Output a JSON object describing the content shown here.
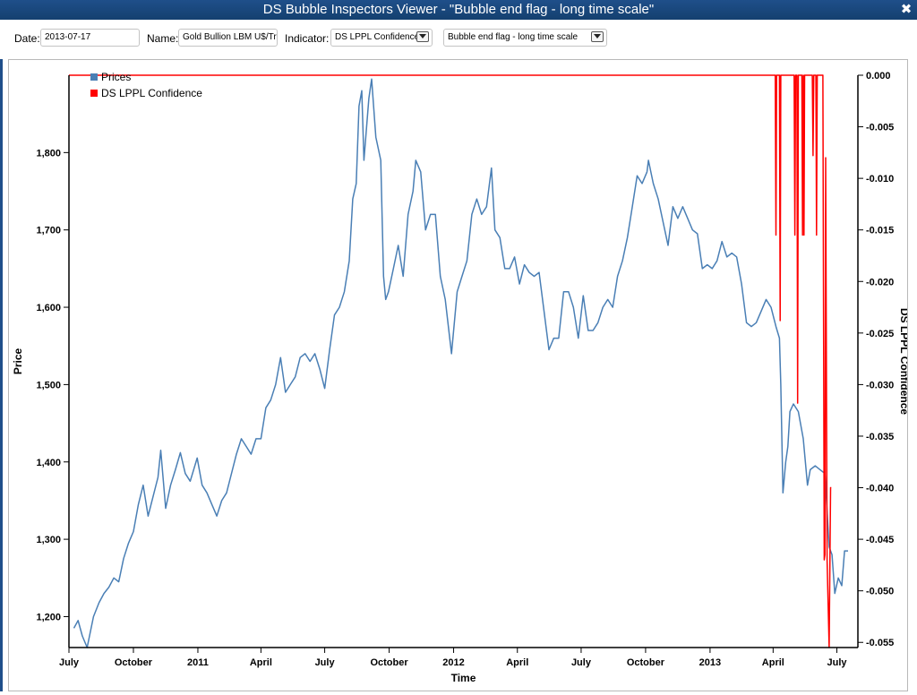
{
  "window": {
    "title": "DS Bubble Inspectors Viewer - \"Bubble end flag - long time scale\"",
    "close_glyph": "✖"
  },
  "toolbar": {
    "date_label": "Date:",
    "date_value": "2013-07-17",
    "name_label": "Name:",
    "name_value": "Gold Bullion LBM U$/Tro",
    "indicator_label": "Indicator:",
    "indicator_value": "DS LPPL Confidence",
    "flag_value": "Bubble end flag - long time scale"
  },
  "colors": {
    "prices": "#4a7fb5",
    "confidence": "#ff0000",
    "titlebar": "#1f4f8a"
  },
  "chart_data": {
    "type": "line",
    "xlabel": "Time",
    "ylabel_left": "Price",
    "ylabel_right": "DS LPPL Confidence",
    "legend": [
      "Prices",
      "DS LPPL Confidence"
    ],
    "legend_position": "top-left",
    "xlim": [
      "2010-07-01",
      "2013-07-31"
    ],
    "ylim_left": [
      1160,
      1900
    ],
    "ylim_right": [
      -0.0555,
      0
    ],
    "yticks_left": [
      1200,
      1300,
      1400,
      1500,
      1600,
      1700,
      1800
    ],
    "ytick_labels_left": [
      "1,200",
      "1,300",
      "1,400",
      "1,500",
      "1,600",
      "1,700",
      "1,800"
    ],
    "yticks_right": [
      0,
      -0.005,
      -0.01,
      -0.015,
      -0.02,
      -0.025,
      -0.03,
      -0.035,
      -0.04,
      -0.045,
      -0.05,
      -0.055
    ],
    "ytick_labels_right": [
      "0.000",
      "-0.005",
      "-0.010",
      "-0.015",
      "-0.020",
      "-0.025",
      "-0.030",
      "-0.035",
      "-0.040",
      "-0.045",
      "-0.050",
      "-0.055"
    ],
    "xticks": [
      "2010-07-01",
      "2010-10-01",
      "2011-01-01",
      "2011-04-01",
      "2011-07-01",
      "2011-10-01",
      "2012-01-01",
      "2012-04-01",
      "2012-07-01",
      "2012-10-01",
      "2013-01-01",
      "2013-04-01",
      "2013-07-01"
    ],
    "xtick_labels": [
      "July",
      "October",
      "2011",
      "April",
      "July",
      "October",
      "2012",
      "April",
      "July",
      "October",
      "2013",
      "April",
      "July"
    ],
    "grid": false,
    "series": [
      {
        "name": "Prices",
        "axis": "left",
        "points": [
          [
            "2010-07-08",
            1185
          ],
          [
            "2010-07-14",
            1195
          ],
          [
            "2010-07-20",
            1175
          ],
          [
            "2010-07-27",
            1160
          ],
          [
            "2010-08-05",
            1200
          ],
          [
            "2010-08-13",
            1218
          ],
          [
            "2010-08-20",
            1230
          ],
          [
            "2010-08-27",
            1238
          ],
          [
            "2010-09-03",
            1250
          ],
          [
            "2010-09-10",
            1245
          ],
          [
            "2010-09-17",
            1275
          ],
          [
            "2010-09-24",
            1295
          ],
          [
            "2010-10-01",
            1310
          ],
          [
            "2010-10-08",
            1345
          ],
          [
            "2010-10-15",
            1370
          ],
          [
            "2010-10-22",
            1330
          ],
          [
            "2010-10-29",
            1355
          ],
          [
            "2010-11-05",
            1380
          ],
          [
            "2010-11-09",
            1415
          ],
          [
            "2010-11-16",
            1340
          ],
          [
            "2010-11-23",
            1370
          ],
          [
            "2010-11-30",
            1390
          ],
          [
            "2010-12-07",
            1412
          ],
          [
            "2010-12-14",
            1385
          ],
          [
            "2010-12-21",
            1375
          ],
          [
            "2010-12-31",
            1405
          ],
          [
            "2011-01-07",
            1370
          ],
          [
            "2011-01-14",
            1360
          ],
          [
            "2011-01-21",
            1345
          ],
          [
            "2011-01-28",
            1330
          ],
          [
            "2011-02-04",
            1350
          ],
          [
            "2011-02-11",
            1360
          ],
          [
            "2011-02-18",
            1385
          ],
          [
            "2011-02-25",
            1410
          ],
          [
            "2011-03-04",
            1430
          ],
          [
            "2011-03-11",
            1420
          ],
          [
            "2011-03-18",
            1410
          ],
          [
            "2011-03-25",
            1430
          ],
          [
            "2011-04-01",
            1430
          ],
          [
            "2011-04-08",
            1470
          ],
          [
            "2011-04-15",
            1480
          ],
          [
            "2011-04-22",
            1500
          ],
          [
            "2011-04-29",
            1535
          ],
          [
            "2011-05-06",
            1490
          ],
          [
            "2011-05-13",
            1500
          ],
          [
            "2011-05-20",
            1510
          ],
          [
            "2011-05-27",
            1535
          ],
          [
            "2011-06-03",
            1540
          ],
          [
            "2011-06-10",
            1530
          ],
          [
            "2011-06-17",
            1540
          ],
          [
            "2011-06-24",
            1520
          ],
          [
            "2011-07-01",
            1495
          ],
          [
            "2011-07-08",
            1545
          ],
          [
            "2011-07-15",
            1590
          ],
          [
            "2011-07-22",
            1600
          ],
          [
            "2011-07-29",
            1620
          ],
          [
            "2011-08-05",
            1660
          ],
          [
            "2011-08-10",
            1740
          ],
          [
            "2011-08-15",
            1760
          ],
          [
            "2011-08-19",
            1860
          ],
          [
            "2011-08-23",
            1880
          ],
          [
            "2011-08-26",
            1790
          ],
          [
            "2011-09-02",
            1870
          ],
          [
            "2011-09-06",
            1895
          ],
          [
            "2011-09-12",
            1820
          ],
          [
            "2011-09-19",
            1790
          ],
          [
            "2011-09-23",
            1640
          ],
          [
            "2011-09-26",
            1610
          ],
          [
            "2011-09-30",
            1620
          ],
          [
            "2011-10-07",
            1650
          ],
          [
            "2011-10-14",
            1680
          ],
          [
            "2011-10-21",
            1640
          ],
          [
            "2011-10-28",
            1720
          ],
          [
            "2011-11-04",
            1750
          ],
          [
            "2011-11-08",
            1790
          ],
          [
            "2011-11-15",
            1775
          ],
          [
            "2011-11-22",
            1700
          ],
          [
            "2011-11-29",
            1720
          ],
          [
            "2011-12-06",
            1720
          ],
          [
            "2011-12-13",
            1640
          ],
          [
            "2011-12-20",
            1610
          ],
          [
            "2011-12-29",
            1540
          ],
          [
            "2012-01-06",
            1620
          ],
          [
            "2012-01-13",
            1640
          ],
          [
            "2012-01-20",
            1660
          ],
          [
            "2012-01-27",
            1720
          ],
          [
            "2012-02-03",
            1740
          ],
          [
            "2012-02-10",
            1720
          ],
          [
            "2012-02-17",
            1730
          ],
          [
            "2012-02-24",
            1780
          ],
          [
            "2012-02-29",
            1700
          ],
          [
            "2012-03-07",
            1690
          ],
          [
            "2012-03-14",
            1650
          ],
          [
            "2012-03-21",
            1650
          ],
          [
            "2012-03-28",
            1665
          ],
          [
            "2012-04-04",
            1630
          ],
          [
            "2012-04-11",
            1655
          ],
          [
            "2012-04-18",
            1645
          ],
          [
            "2012-04-25",
            1640
          ],
          [
            "2012-05-02",
            1645
          ],
          [
            "2012-05-09",
            1595
          ],
          [
            "2012-05-16",
            1545
          ],
          [
            "2012-05-23",
            1560
          ],
          [
            "2012-05-30",
            1560
          ],
          [
            "2012-06-06",
            1620
          ],
          [
            "2012-06-13",
            1620
          ],
          [
            "2012-06-20",
            1600
          ],
          [
            "2012-06-27",
            1560
          ],
          [
            "2012-07-04",
            1615
          ],
          [
            "2012-07-11",
            1570
          ],
          [
            "2012-07-18",
            1570
          ],
          [
            "2012-07-25",
            1580
          ],
          [
            "2012-08-01",
            1600
          ],
          [
            "2012-08-08",
            1610
          ],
          [
            "2012-08-15",
            1600
          ],
          [
            "2012-08-22",
            1640
          ],
          [
            "2012-08-29",
            1660
          ],
          [
            "2012-09-05",
            1690
          ],
          [
            "2012-09-12",
            1730
          ],
          [
            "2012-09-19",
            1770
          ],
          [
            "2012-09-26",
            1760
          ],
          [
            "2012-10-03",
            1775
          ],
          [
            "2012-10-05",
            1790
          ],
          [
            "2012-10-12",
            1760
          ],
          [
            "2012-10-19",
            1740
          ],
          [
            "2012-10-26",
            1710
          ],
          [
            "2012-11-02",
            1680
          ],
          [
            "2012-11-09",
            1730
          ],
          [
            "2012-11-16",
            1715
          ],
          [
            "2012-11-23",
            1730
          ],
          [
            "2012-11-30",
            1715
          ],
          [
            "2012-12-07",
            1700
          ],
          [
            "2012-12-14",
            1695
          ],
          [
            "2012-12-21",
            1650
          ],
          [
            "2012-12-28",
            1655
          ],
          [
            "2013-01-04",
            1650
          ],
          [
            "2013-01-11",
            1660
          ],
          [
            "2013-01-18",
            1685
          ],
          [
            "2013-01-25",
            1665
          ],
          [
            "2013-02-01",
            1670
          ],
          [
            "2013-02-08",
            1665
          ],
          [
            "2013-02-15",
            1630
          ],
          [
            "2013-02-22",
            1580
          ],
          [
            "2013-03-01",
            1575
          ],
          [
            "2013-03-08",
            1580
          ],
          [
            "2013-03-15",
            1595
          ],
          [
            "2013-03-22",
            1610
          ],
          [
            "2013-03-29",
            1600
          ],
          [
            "2013-04-05",
            1575
          ],
          [
            "2013-04-10",
            1560
          ],
          [
            "2013-04-12",
            1500
          ],
          [
            "2013-04-15",
            1360
          ],
          [
            "2013-04-19",
            1400
          ],
          [
            "2013-04-22",
            1420
          ],
          [
            "2013-04-25",
            1465
          ],
          [
            "2013-04-30",
            1475
          ],
          [
            "2013-05-07",
            1465
          ],
          [
            "2013-05-14",
            1430
          ],
          [
            "2013-05-20",
            1370
          ],
          [
            "2013-05-24",
            1390
          ],
          [
            "2013-05-31",
            1395
          ],
          [
            "2013-06-07",
            1390
          ],
          [
            "2013-06-14",
            1385
          ],
          [
            "2013-06-20",
            1290
          ],
          [
            "2013-06-24",
            1280
          ],
          [
            "2013-06-28",
            1230
          ],
          [
            "2013-07-03",
            1250
          ],
          [
            "2013-07-08",
            1240
          ],
          [
            "2013-07-12",
            1285
          ],
          [
            "2013-07-17",
            1285
          ]
        ]
      },
      {
        "name": "DS LPPL Confidence",
        "axis": "right",
        "points": [
          [
            "2010-07-01",
            0
          ],
          [
            "2013-04-01",
            0
          ],
          [
            "2013-04-04",
            0
          ],
          [
            "2013-04-05",
            -0.0155
          ],
          [
            "2013-04-06",
            0
          ],
          [
            "2013-04-10",
            0
          ],
          [
            "2013-04-11",
            -0.0238
          ],
          [
            "2013-04-12",
            0
          ],
          [
            "2013-05-01",
            0
          ],
          [
            "2013-05-02",
            -0.0155
          ],
          [
            "2013-05-03",
            0
          ],
          [
            "2013-05-05",
            0
          ],
          [
            "2013-05-06",
            -0.0318
          ],
          [
            "2013-05-07",
            0
          ],
          [
            "2013-05-12",
            0
          ],
          [
            "2013-05-13",
            -0.0155
          ],
          [
            "2013-05-14",
            0
          ],
          [
            "2013-05-15",
            -0.0155
          ],
          [
            "2013-05-16",
            0
          ],
          [
            "2013-05-27",
            0
          ],
          [
            "2013-05-28",
            -0.0078
          ],
          [
            "2013-05-29",
            0
          ],
          [
            "2013-06-01",
            0
          ],
          [
            "2013-06-02",
            -0.0155
          ],
          [
            "2013-06-03",
            0
          ],
          [
            "2013-06-11",
            0
          ],
          [
            "2013-06-13",
            -0.047
          ],
          [
            "2013-06-14",
            -0.0465
          ],
          [
            "2013-06-15",
            -0.008
          ],
          [
            "2013-06-17",
            -0.047
          ],
          [
            "2013-06-20",
            -0.0555
          ],
          [
            "2013-06-22",
            -0.04
          ],
          [
            "2013-06-23",
            -0.04
          ]
        ]
      }
    ]
  }
}
